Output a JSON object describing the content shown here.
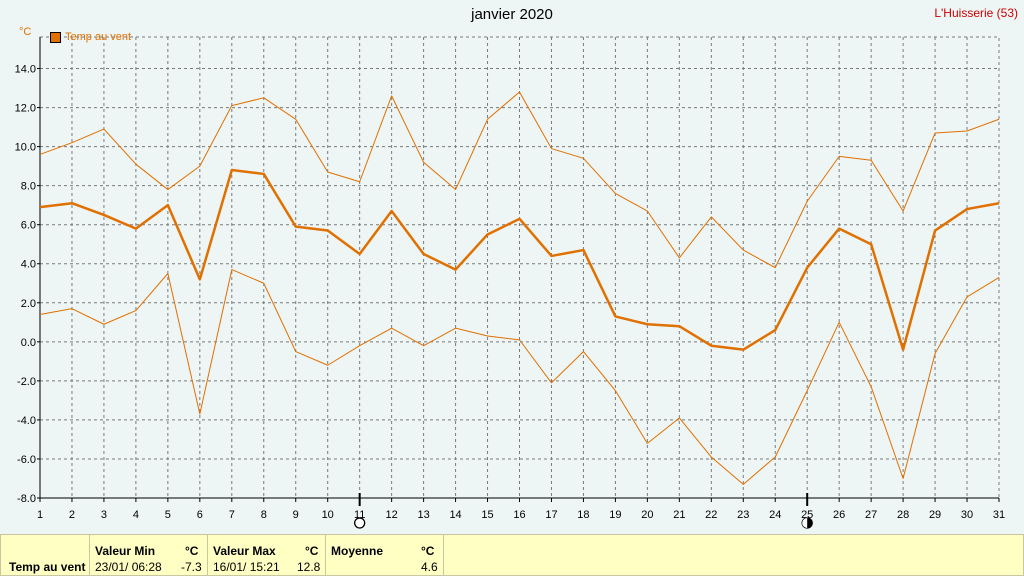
{
  "header": {
    "title": "janvier 2020",
    "station": "L'Huisserie (53)",
    "unit": "°C",
    "legend_label": "Temp au vent"
  },
  "colors": {
    "series": "#e07000",
    "grid": "#7a7a7a",
    "background": "#eef5f5",
    "footer": "#ffffc4"
  },
  "moon_icons": [
    {
      "day": 11,
      "icon": "full-moon-icon"
    },
    {
      "day": 25,
      "icon": "new-moon-icon"
    }
  ],
  "chart_data": {
    "type": "line",
    "x": [
      1,
      2,
      3,
      4,
      5,
      6,
      7,
      8,
      9,
      10,
      11,
      12,
      13,
      14,
      15,
      16,
      17,
      18,
      19,
      20,
      21,
      22,
      23,
      24,
      25,
      26,
      27,
      28,
      29,
      30,
      31
    ],
    "xlim": [
      1,
      31
    ],
    "ylim": [
      -8,
      15
    ],
    "yticks": [
      "-8.0",
      "-6.0",
      "-4.0",
      "-2.0",
      "0.0",
      "2.0",
      "4.0",
      "6.0",
      "8.0",
      "10.0",
      "12.0",
      "14.0"
    ],
    "ylabel": "°C",
    "grid": true,
    "legend": "top-left",
    "series": [
      {
        "name": "Temp au vent",
        "role": "mean",
        "values": [
          6.9,
          7.1,
          6.5,
          5.8,
          7.0,
          3.2,
          8.8,
          8.6,
          5.9,
          5.7,
          4.5,
          6.7,
          4.5,
          3.7,
          5.5,
          6.3,
          4.4,
          4.7,
          1.3,
          0.9,
          0.8,
          -0.2,
          -0.4,
          0.6,
          3.8,
          5.8,
          5.0,
          -0.4,
          5.7,
          6.8,
          7.1
        ]
      },
      {
        "role": "max",
        "values": [
          9.6,
          10.2,
          10.9,
          9.1,
          7.8,
          9.0,
          12.1,
          12.5,
          11.4,
          8.7,
          8.2,
          12.6,
          9.2,
          7.8,
          11.4,
          12.8,
          9.9,
          9.4,
          7.6,
          6.7,
          4.3,
          6.4,
          4.7,
          3.8,
          7.2,
          9.5,
          9.3,
          6.7,
          10.7,
          10.8,
          11.4
        ]
      },
      {
        "role": "min",
        "values": [
          1.4,
          1.7,
          0.9,
          1.6,
          3.5,
          -3.7,
          3.7,
          3.0,
          -0.5,
          -1.2,
          -0.2,
          0.7,
          -0.2,
          0.7,
          0.3,
          0.1,
          -2.1,
          -0.5,
          -2.5,
          -5.2,
          -3.9,
          -5.9,
          -7.3,
          -5.9,
          -2.5,
          1.0,
          -2.3,
          -7.0,
          -0.6,
          2.3,
          3.3
        ]
      }
    ]
  },
  "summary": {
    "series_label": "Temp au vent",
    "min": {
      "label": "Valeur Min",
      "unit": "°C",
      "date": "23/01/  06:28",
      "value": "-7.3"
    },
    "max": {
      "label": "Valeur Max",
      "unit": "°C",
      "date": "16/01/  15:21",
      "value": "12.8"
    },
    "mean": {
      "label": "Moyenne",
      "unit": "°C",
      "value": "4.6"
    }
  }
}
